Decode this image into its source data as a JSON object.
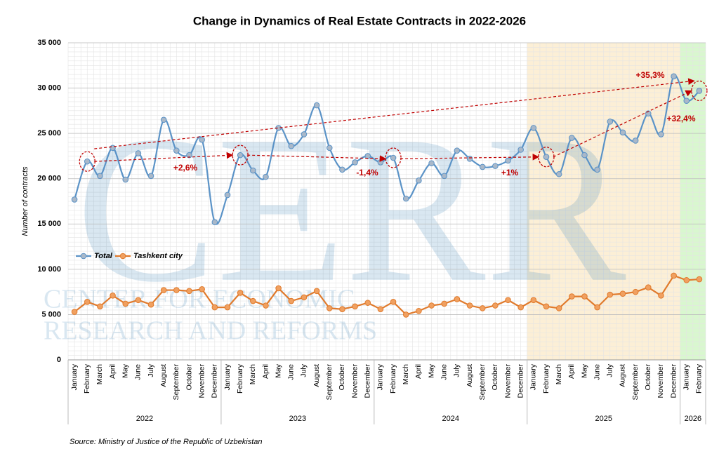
{
  "chart_data": {
    "type": "line",
    "title": "Change in Dynamics of Real Estate Contracts in 2022-2026",
    "y_label": "Number of contracts",
    "source": "Source: Ministry of Justice of the Republic of Uzbekistan",
    "watermark": [
      "CERR",
      "CENTER FOR ECONOMIC",
      "RESEARCH AND REFORMS"
    ],
    "category_groups": [
      {
        "label": "2022",
        "categories": [
          "January",
          "February",
          "March",
          "April",
          "May",
          "June",
          "July",
          "August",
          "September",
          "October",
          "November",
          "December"
        ]
      },
      {
        "label": "2023",
        "categories": [
          "January",
          "February",
          "March",
          "April",
          "May",
          "June",
          "July",
          "August",
          "September",
          "October",
          "November",
          "December"
        ]
      },
      {
        "label": "2024",
        "categories": [
          "January",
          "February",
          "March",
          "April",
          "May",
          "June",
          "July",
          "August",
          "September",
          "October",
          "November",
          "December"
        ]
      },
      {
        "label": "2025",
        "categories": [
          "January",
          "February",
          "March",
          "April",
          "May",
          "June",
          "July",
          "August",
          "September",
          "October",
          "November",
          "December"
        ],
        "shade": "#fcefd6"
      },
      {
        "label": "2026",
        "categories": [
          "January",
          "February"
        ],
        "shade": "#d9f7cf"
      }
    ],
    "series": [
      {
        "name": "Total",
        "color": "#5b93c7",
        "marker": "#a9b8c9",
        "smooth": true,
        "values": [
          17700,
          21900,
          20300,
          23400,
          19900,
          22800,
          20300,
          26500,
          23100,
          22600,
          24300,
          15200,
          18200,
          22600,
          20900,
          20200,
          25600,
          23600,
          24900,
          28100,
          23400,
          21000,
          21800,
          22500,
          21800,
          22300,
          17800,
          19800,
          21700,
          20300,
          23100,
          22200,
          21300,
          21400,
          22000,
          23200,
          25600,
          22400,
          20500,
          24500,
          22600,
          21000,
          26300,
          25100,
          24200,
          27200,
          24900,
          31300,
          28600,
          29700
        ]
      },
      {
        "name": "Tashkent city",
        "color": "#e07a2c",
        "marker": "#f0a060",
        "smooth": false,
        "values": [
          5300,
          6400,
          5900,
          7100,
          6200,
          6600,
          6100,
          7700,
          7700,
          7600,
          7800,
          5800,
          5800,
          7400,
          6500,
          6000,
          7900,
          6500,
          6900,
          7600,
          5700,
          5600,
          5900,
          6300,
          5600,
          6400,
          5000,
          5400,
          6000,
          6200,
          6700,
          6000,
          5700,
          6000,
          6600,
          5800,
          6600,
          5900,
          5700,
          7000,
          7000,
          5800,
          7200,
          7300,
          7500,
          8000,
          7100,
          9300,
          8800,
          8900
        ]
      }
    ],
    "ylim": [
      0,
      35000
    ],
    "yticks": [
      0,
      {
        "value": 5000,
        "label": "5 000"
      },
      {
        "value": 10000,
        "label": "10 000"
      },
      {
        "value": 15000,
        "label": "15 000"
      },
      {
        "value": 20000,
        "label": "20 000"
      },
      {
        "value": 25000,
        "label": "25 000"
      },
      {
        "value": 30000,
        "label": "30 000"
      },
      {
        "value": 35000,
        "label": "35 000"
      }
    ],
    "grid": true,
    "legend": "left",
    "annotations": [
      {
        "text": "+2,6%"
      },
      {
        "text": "-1,4%"
      },
      {
        "text": "+1%"
      },
      {
        "text": "+32,4%"
      },
      {
        "text": "+35,3%"
      }
    ],
    "annotation_color": "#c00000"
  }
}
